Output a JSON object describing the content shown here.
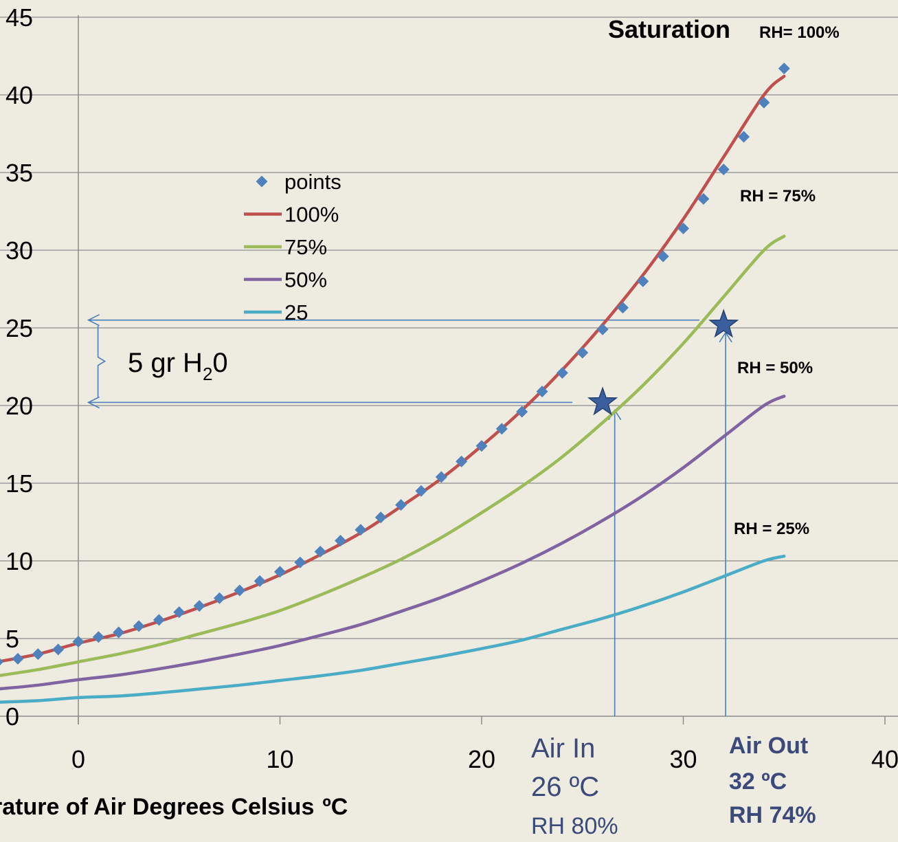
{
  "chart_data": {
    "type": "line",
    "title": "",
    "xlabel": "rature of Air   Degrees Celsius",
    "xlabel_unit": "ºC",
    "ylabel": "",
    "xlim": [
      -4,
      40
    ],
    "ylim": [
      0,
      45
    ],
    "x_ticks": [
      "0",
      "10",
      "20",
      "30",
      "40"
    ],
    "y_ticks": [
      "0",
      "5",
      "10",
      "15",
      "20",
      "25",
      "30",
      "35",
      "40",
      "45"
    ],
    "grid": "horizontal",
    "legend": {
      "placement": "center-left",
      "entries": [
        "points",
        "100%",
        "75%",
        "50%",
        "25"
      ]
    },
    "points": {
      "name": "points",
      "color": "#4f81bd",
      "marker": "diamond",
      "x": [
        -4,
        -3,
        -2,
        -1,
        0,
        1,
        2,
        3,
        4,
        5,
        6,
        7,
        8,
        9,
        10,
        11,
        12,
        13,
        14,
        15,
        16,
        17,
        18,
        19,
        20,
        21,
        22,
        23,
        24,
        25,
        26,
        27,
        28,
        29,
        30,
        31,
        32,
        33,
        34,
        35
      ],
      "y": [
        3.5,
        3.7,
        4.0,
        4.3,
        4.8,
        5.1,
        5.4,
        5.8,
        6.2,
        6.7,
        7.1,
        7.6,
        8.1,
        8.7,
        9.3,
        9.9,
        10.6,
        11.3,
        12.0,
        12.8,
        13.6,
        14.5,
        15.4,
        16.4,
        17.4,
        18.5,
        19.6,
        20.9,
        22.1,
        23.4,
        24.9,
        26.3,
        28.0,
        29.6,
        31.4,
        33.3,
        35.2,
        37.3,
        39.5,
        41.7
      ]
    },
    "series": [
      {
        "name": "100%",
        "color": "#c0504d",
        "x": [
          -4,
          -2,
          0,
          2,
          4,
          6,
          8,
          10,
          12,
          14,
          16,
          18,
          20,
          22,
          24,
          26,
          28,
          30,
          32,
          34,
          35
        ],
        "y": [
          3.5,
          4.0,
          4.7,
          5.3,
          6.1,
          7.0,
          8.0,
          9.1,
          10.4,
          11.8,
          13.5,
          15.3,
          17.4,
          19.7,
          22.3,
          25.2,
          28.4,
          32.0,
          36.0,
          40.0,
          41.2
        ]
      },
      {
        "name": "75%",
        "color": "#9bbb59",
        "x": [
          -4,
          -2,
          0,
          2,
          4,
          6,
          8,
          10,
          12,
          14,
          16,
          18,
          20,
          22,
          24,
          26,
          28,
          30,
          32,
          34,
          35
        ],
        "y": [
          2.6,
          3.0,
          3.5,
          4.0,
          4.6,
          5.3,
          6.0,
          6.8,
          7.8,
          8.9,
          10.1,
          11.5,
          13.1,
          14.8,
          16.7,
          18.9,
          21.3,
          24.0,
          27.0,
          30.0,
          30.9
        ]
      },
      {
        "name": "50%",
        "color": "#8064a2",
        "x": [
          -4,
          -2,
          0,
          2,
          4,
          6,
          8,
          10,
          12,
          14,
          16,
          18,
          20,
          22,
          24,
          26,
          28,
          30,
          32,
          34,
          35
        ],
        "y": [
          1.75,
          2.0,
          2.35,
          2.65,
          3.05,
          3.5,
          4.0,
          4.55,
          5.2,
          5.9,
          6.75,
          7.65,
          8.7,
          9.85,
          11.15,
          12.6,
          14.2,
          16.0,
          18.0,
          20.0,
          20.6
        ]
      },
      {
        "name": "25",
        "color": "#4bacc6",
        "x": [
          -4,
          -2,
          0,
          2,
          4,
          6,
          8,
          10,
          12,
          14,
          16,
          18,
          20,
          22,
          24,
          26,
          28,
          30,
          32,
          34,
          35
        ],
        "y": [
          0.9,
          1.0,
          1.2,
          1.3,
          1.5,
          1.75,
          2.0,
          2.3,
          2.6,
          2.95,
          3.4,
          3.85,
          4.35,
          4.9,
          5.6,
          6.3,
          7.1,
          8.0,
          9.0,
          10.0,
          10.3
        ]
      }
    ],
    "markers": [
      {
        "name": "air-in-star",
        "x": 26,
        "y": 20.2,
        "color": "#3a5f9e"
      },
      {
        "name": "air-out-star",
        "x": 32,
        "y": 25.2,
        "color": "#3a5f9e"
      }
    ],
    "guide_lines": {
      "color": "#4a7ebb",
      "h_upper": {
        "y": 25.5,
        "x_to": 30.8
      },
      "h_lower": {
        "y": 20.2,
        "x_to": 24.5
      },
      "v_in": {
        "x": 26.6,
        "y_to": 19.7
      },
      "v_out": {
        "x": 32.1,
        "y_to": 24.7
      }
    },
    "annotations": {
      "saturation_title": "Saturation",
      "saturation_rh": "RH= 100%",
      "rh75": "RH = 75%",
      "rh50": "RH = 50%",
      "rh25": "RH = 25%",
      "delta_main": "5 gr H",
      "delta_sub": "2",
      "delta_tail": "0",
      "air_in_1": "Air In",
      "air_in_2": "26 ºC",
      "air_in_3": "RH 80%",
      "air_out_1": "Air Out",
      "air_out_2": "32 ºC",
      "air_out_3": "RH 74%"
    }
  }
}
